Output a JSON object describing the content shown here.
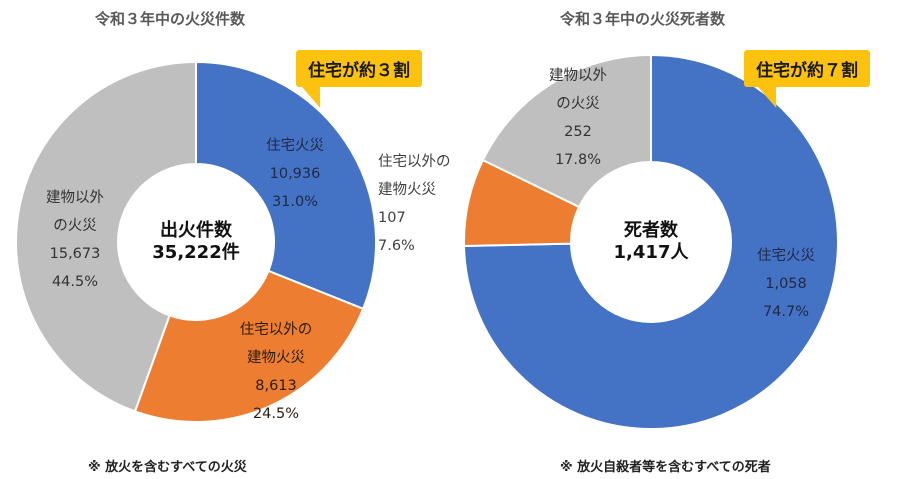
{
  "chart_data": [
    {
      "type": "pie",
      "title": "令和３年中の火災件数",
      "center": {
        "line1": "出火件数",
        "line2": "35,222件"
      },
      "callout": "住宅が約３割",
      "footnote": "※ 放火を含むすべての火災",
      "slices": [
        {
          "label_lines": [
            "住宅火災"
          ],
          "value": 10936,
          "value_text": "10,936",
          "percent_text": "31.0%",
          "color": "#4472c4"
        },
        {
          "label_lines": [
            "住宅以外の",
            "建物火災"
          ],
          "value": 8613,
          "value_text": "8,613",
          "percent_text": "24.5%",
          "color": "#ed7d31"
        },
        {
          "label_lines": [
            "建物以外",
            "の火災"
          ],
          "value": 15673,
          "value_text": "15,673",
          "percent_text": "44.5%",
          "color": "#bfbfbf"
        }
      ]
    },
    {
      "type": "pie",
      "title": "令和３年中の火災死者数",
      "center": {
        "line1": "死者数",
        "line2": "1,417人"
      },
      "callout": "住宅が約７割",
      "footnote": "※ 放火自殺者等を含むすべての死者",
      "slices": [
        {
          "label_lines": [
            "住宅火災"
          ],
          "value": 1058,
          "value_text": "1,058",
          "percent_text": "74.7%",
          "color": "#4472c4"
        },
        {
          "label_lines": [
            "住宅以外の",
            "建物火災"
          ],
          "value": 107,
          "value_text": "107",
          "percent_text": "7.6%",
          "color": "#ed7d31"
        },
        {
          "label_lines": [
            "建物以外",
            "の火災"
          ],
          "value": 252,
          "value_text": "252",
          "percent_text": "17.8%",
          "color": "#bfbfbf"
        }
      ]
    }
  ]
}
